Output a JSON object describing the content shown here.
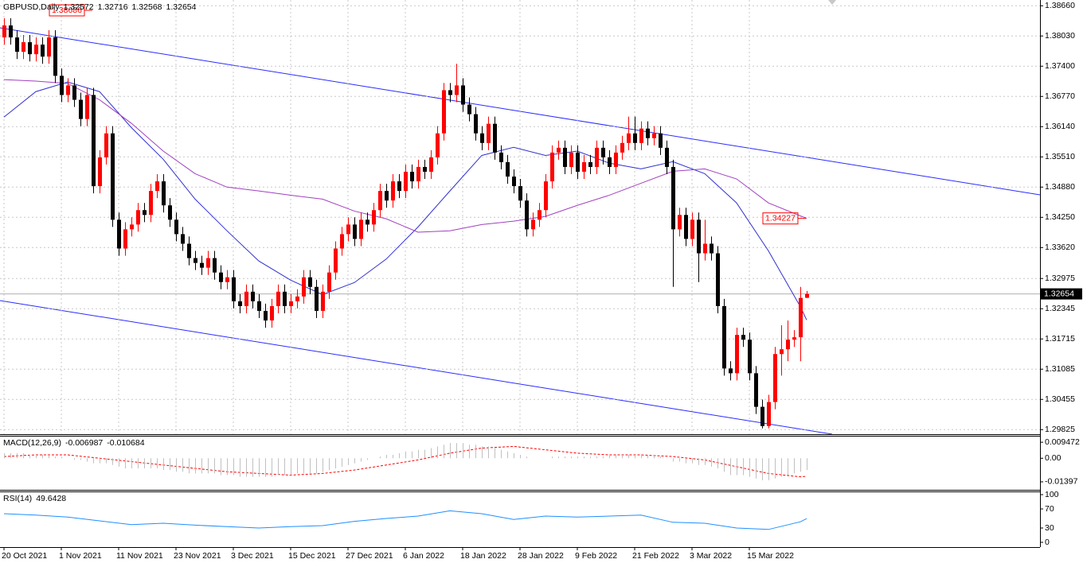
{
  "chart_data": [
    {
      "type": "candlestick",
      "title": "GBPUSD,Daily",
      "categories": [
        "20 Oct 2021",
        null,
        null,
        null,
        null,
        null,
        null,
        null,
        null,
        "1 Nov 2021",
        null,
        null,
        null,
        null,
        null,
        null,
        null,
        null,
        "11 Nov 2021",
        null,
        null,
        null,
        null,
        null,
        null,
        null,
        null,
        "23 Nov 2021",
        null,
        null,
        null,
        null,
        null,
        null,
        null,
        null,
        "3 Dec 2021",
        null,
        null,
        null,
        null,
        null,
        null,
        null,
        null,
        "15 Dec 2021",
        null,
        null,
        null,
        null,
        null,
        null,
        null,
        null,
        "27 Dec 2021",
        null,
        null,
        null,
        null,
        null,
        null,
        null,
        null,
        "6 Jan 2022",
        null,
        null,
        null,
        null,
        null,
        null,
        null,
        null,
        "18 Jan 2022",
        null,
        null,
        null,
        null,
        null,
        null,
        null,
        null,
        "28 Jan 2022",
        null,
        null,
        null,
        null,
        null,
        null,
        null,
        null,
        "9 Feb 2022",
        null,
        null,
        null,
        null,
        null,
        null,
        null,
        null,
        "21 Feb 2022",
        null,
        null,
        null,
        null,
        null,
        null,
        null,
        null,
        "3 Mar 2022",
        null,
        null,
        null,
        null,
        null,
        null,
        null,
        null,
        "15 Mar 2022",
        null,
        null,
        null,
        null,
        null,
        null,
        null,
        null,
        null
      ],
      "open": [
        1.38,
        1.3825,
        1.38,
        1.377,
        1.379,
        1.3765,
        1.3785,
        1.376,
        1.38,
        1.372,
        1.368,
        1.37,
        1.367,
        1.363,
        1.368,
        1.349,
        1.355,
        1.36,
        1.342,
        1.336,
        1.34,
        1.341,
        1.344,
        1.343,
        1.348,
        1.35,
        1.345,
        1.342,
        1.339,
        1.337,
        1.334,
        1.333,
        1.332,
        1.334,
        1.331,
        1.329,
        1.33,
        1.325,
        1.324,
        1.327,
        1.325,
        1.323,
        1.321,
        1.324,
        1.327,
        1.324,
        1.325,
        1.326,
        1.33,
        1.328,
        1.323,
        1.327,
        1.331,
        1.336,
        1.339,
        1.341,
        1.338,
        1.342,
        1.341,
        1.344,
        1.348,
        1.346,
        1.35,
        1.348,
        1.352,
        1.35,
        1.353,
        1.352,
        1.355,
        1.36,
        1.369,
        1.368,
        1.37,
        1.366,
        1.364,
        1.36,
        1.358,
        1.362,
        1.356,
        1.354,
        1.351,
        1.349,
        1.346,
        1.34,
        1.342,
        1.344,
        1.35,
        1.356,
        1.357,
        1.353,
        1.356,
        1.352,
        1.354,
        1.353,
        1.357,
        1.355,
        1.353,
        1.356,
        1.358,
        1.36,
        1.358,
        1.361,
        1.359,
        1.36,
        1.357,
        1.353,
        1.34,
        1.343,
        1.338,
        1.342,
        1.335,
        1.337,
        1.335,
        1.324,
        1.311,
        1.31,
        1.318,
        1.317,
        1.31,
        1.303,
        1.299,
        1.304,
        1.314,
        1.315,
        1.317,
        1.3175,
        1.32572
      ],
      "high": [
        1.384,
        1.384,
        1.3815,
        1.3805,
        1.3805,
        1.38,
        1.38,
        1.3815,
        1.3815,
        1.3735,
        1.3715,
        1.3715,
        1.3685,
        1.3695,
        1.3695,
        1.3565,
        1.3615,
        1.3615,
        1.3435,
        1.3415,
        1.3425,
        1.3455,
        1.3455,
        1.3495,
        1.3515,
        1.3515,
        1.3465,
        1.3435,
        1.3405,
        1.3385,
        1.3355,
        1.3345,
        1.3355,
        1.3355,
        1.3325,
        1.3315,
        1.3315,
        1.3265,
        1.3285,
        1.3285,
        1.3265,
        1.3245,
        1.3255,
        1.3285,
        1.3285,
        1.3265,
        1.3275,
        1.3315,
        1.3315,
        1.3295,
        1.3285,
        1.3325,
        1.3375,
        1.3405,
        1.3425,
        1.3425,
        1.3435,
        1.3435,
        1.3455,
        1.3495,
        1.3495,
        1.3515,
        1.3515,
        1.3535,
        1.3535,
        1.3545,
        1.3545,
        1.3565,
        1.3615,
        1.3705,
        1.3705,
        1.3745,
        1.3715,
        1.3675,
        1.3655,
        1.3615,
        1.3635,
        1.3635,
        1.3575,
        1.3555,
        1.3525,
        1.3505,
        1.3475,
        1.3435,
        1.3455,
        1.3515,
        1.3575,
        1.3585,
        1.3585,
        1.3575,
        1.3575,
        1.3555,
        1.3555,
        1.3585,
        1.3585,
        1.3565,
        1.3575,
        1.3595,
        1.3635,
        1.3635,
        1.3625,
        1.3625,
        1.3615,
        1.3615,
        1.3585,
        1.3545,
        1.3445,
        1.3445,
        1.3435,
        1.3435,
        1.342,
        1.3385,
        1.3365,
        1.3255,
        1.3125,
        1.3195,
        1.3195,
        1.3185,
        1.3115,
        1.3045,
        1.3055,
        1.3155,
        1.32,
        1.321,
        1.319,
        1.328,
        1.32716
      ],
      "low": [
        1.3785,
        1.3785,
        1.3755,
        1.3755,
        1.375,
        1.375,
        1.3745,
        1.3745,
        1.3705,
        1.3665,
        1.3665,
        1.3655,
        1.3615,
        1.3615,
        1.3475,
        1.3475,
        1.3535,
        1.3405,
        1.3345,
        1.3345,
        1.3385,
        1.3395,
        1.3415,
        1.3415,
        1.3465,
        1.3435,
        1.3405,
        1.3375,
        1.3355,
        1.3325,
        1.3315,
        1.3305,
        1.3305,
        1.3295,
        1.3275,
        1.3275,
        1.3235,
        1.3225,
        1.3225,
        1.3235,
        1.3215,
        1.3195,
        1.3195,
        1.3225,
        1.3225,
        1.3225,
        1.3235,
        1.3245,
        1.3265,
        1.3215,
        1.3215,
        1.3255,
        1.3295,
        1.3345,
        1.3375,
        1.3365,
        1.3365,
        1.3395,
        1.3395,
        1.3425,
        1.3445,
        1.3445,
        1.3465,
        1.3465,
        1.3485,
        1.3485,
        1.3505,
        1.3505,
        1.3535,
        1.3585,
        1.3665,
        1.3665,
        1.3645,
        1.3625,
        1.3585,
        1.3565,
        1.3565,
        1.3545,
        1.3525,
        1.3495,
        1.3475,
        1.3445,
        1.3385,
        1.3385,
        1.3405,
        1.3425,
        1.3485,
        1.3545,
        1.3515,
        1.3515,
        1.3505,
        1.3505,
        1.3515,
        1.3515,
        1.3535,
        1.3515,
        1.3515,
        1.3545,
        1.3565,
        1.3565,
        1.3565,
        1.3575,
        1.3575,
        1.3555,
        1.3515,
        1.328,
        1.3385,
        1.3365,
        1.3365,
        1.329,
        1.3335,
        1.3335,
        1.3225,
        1.3095,
        1.3085,
        1.3085,
        1.3155,
        1.3085,
        1.3015,
        1.2985,
        1.2985,
        1.3025,
        1.3095,
        1.3125,
        1.3155,
        1.3125,
        1.32568
      ],
      "close": [
        1.3825,
        1.38,
        1.377,
        1.379,
        1.3765,
        1.3785,
        1.376,
        1.38,
        1.372,
        1.368,
        1.37,
        1.367,
        1.363,
        1.368,
        1.349,
        1.355,
        1.36,
        1.342,
        1.336,
        1.34,
        1.341,
        1.344,
        1.343,
        1.348,
        1.35,
        1.345,
        1.342,
        1.339,
        1.337,
        1.334,
        1.333,
        1.332,
        1.334,
        1.331,
        1.329,
        1.33,
        1.325,
        1.324,
        1.327,
        1.325,
        1.323,
        1.321,
        1.324,
        1.327,
        1.324,
        1.325,
        1.326,
        1.33,
        1.328,
        1.323,
        1.327,
        1.331,
        1.336,
        1.339,
        1.341,
        1.338,
        1.342,
        1.341,
        1.344,
        1.348,
        1.346,
        1.35,
        1.348,
        1.352,
        1.35,
        1.353,
        1.352,
        1.355,
        1.36,
        1.369,
        1.368,
        1.37,
        1.366,
        1.364,
        1.36,
        1.358,
        1.362,
        1.356,
        1.354,
        1.351,
        1.349,
        1.346,
        1.34,
        1.342,
        1.344,
        1.35,
        1.356,
        1.357,
        1.353,
        1.356,
        1.352,
        1.354,
        1.353,
        1.357,
        1.355,
        1.353,
        1.356,
        1.358,
        1.36,
        1.358,
        1.361,
        1.359,
        1.36,
        1.357,
        1.353,
        1.34,
        1.343,
        1.338,
        1.342,
        1.335,
        1.337,
        1.335,
        1.324,
        1.311,
        1.31,
        1.318,
        1.317,
        1.31,
        1.303,
        1.299,
        1.304,
        1.314,
        1.315,
        1.317,
        1.3175,
        1.3257,
        1.32654
      ],
      "up_color": "#ff0000",
      "down_color": "#000000",
      "series": [
        {
          "color": "#3030d0",
          "x": [
            0,
            5,
            10,
            15,
            20,
            25,
            30,
            35,
            40,
            45,
            50,
            55,
            60,
            65,
            70,
            75,
            80,
            85,
            90,
            95,
            100,
            105,
            110,
            115,
            120,
            125,
            126
          ],
          "values": [
            1.3634,
            1.3687,
            1.3707,
            1.3687,
            1.3612,
            1.3546,
            1.3463,
            1.3397,
            1.3334,
            1.3294,
            1.3264,
            1.3289,
            1.3338,
            1.3405,
            1.348,
            1.3554,
            1.3571,
            1.3554,
            1.3563,
            1.3538,
            1.3526,
            1.3541,
            1.3516,
            1.3455,
            1.3355,
            1.3239,
            1.3211
          ]
        },
        {
          "color": "#a040c0",
          "x": [
            0,
            5,
            10,
            15,
            20,
            25,
            30,
            35,
            40,
            45,
            50,
            55,
            60,
            65,
            70,
            75,
            80,
            85,
            90,
            95,
            100,
            105,
            110,
            115,
            120,
            125,
            126
          ],
          "values": [
            1.3712,
            1.3709,
            1.3704,
            1.367,
            1.3621,
            1.3563,
            1.3516,
            1.3488,
            1.348,
            1.3471,
            1.3463,
            1.3438,
            1.3422,
            1.3394,
            1.3397,
            1.341,
            1.3417,
            1.3427,
            1.345,
            1.3471,
            1.3496,
            1.3521,
            1.3526,
            1.3505,
            1.3455,
            1.3428,
            1.3423
          ]
        }
      ],
      "price_labels": [
        1.38686,
        1.34227
      ],
      "price_label_color": "#ff0000",
      "ylim": [
        1.2973,
        1.3878
      ],
      "yticks": [
        {
          "value": 1.3866,
          "label": "1.38660"
        },
        {
          "value": 1.3803,
          "label": "1.38030"
        },
        {
          "value": 1.374,
          "label": "1.37400"
        },
        {
          "value": 1.3677,
          "label": "1.36770"
        },
        {
          "value": 1.3614,
          "label": "1.36140"
        },
        {
          "value": 1.3551,
          "label": "1.35510"
        },
        {
          "value": 1.3488,
          "label": "1.34880"
        },
        {
          "value": 1.3425,
          "label": "1.34250"
        },
        {
          "value": 1.3362,
          "label": "1.33620"
        },
        1.32975,
        1.32345,
        1.31715,
        1.31085,
        1.30455,
        1.29825
      ],
      "grid": true
    },
    {
      "type": "macd",
      "title": "MACD(12,26,9)",
      "color": "#c0c0c0",
      "values": [
        0.003,
        0.003,
        0.003,
        0.003,
        0.002,
        0.002,
        0.002,
        0.002,
        0.001,
        0.001,
        0,
        -0.001,
        -0.001,
        -0.002,
        -0.003,
        -0.003,
        -0.003,
        -0.004,
        -0.005,
        -0.006,
        -0.006,
        -0.006,
        -0.006,
        -0.006,
        -0.006,
        -0.007,
        -0.007,
        -0.008,
        -0.008,
        -0.009,
        -0.009,
        -0.009,
        -0.009,
        -0.009,
        -0.01,
        -0.01,
        -0.01,
        -0.011,
        -0.011,
        -0.011,
        -0.011,
        -0.011,
        -0.011,
        -0.01,
        -0.01,
        -0.01,
        -0.009,
        -0.009,
        -0.009,
        -0.009,
        -0.008,
        -0.007,
        -0.006,
        -0.005,
        -0.004,
        -0.003,
        -0.002,
        -0.001,
        0,
        0.001,
        0.002,
        0.002,
        0.003,
        0.004,
        0.004,
        0.005,
        0.005,
        0.006,
        0.007,
        0.008,
        0.009,
        0.009,
        0.009,
        0.008,
        0.008,
        0.007,
        0.007,
        0.006,
        0.005,
        0.004,
        0.003,
        0.002,
        0.001,
        0,
        0,
        0,
        0.001,
        0.001,
        0.001,
        0.001,
        0.001,
        0.001,
        0.001,
        0.001,
        0.001,
        0.002,
        0.002,
        0.002,
        0.002,
        0.002,
        0.002,
        0.002,
        0.002,
        0.001,
        0,
        -0.002,
        -0.002,
        -0.003,
        -0.003,
        -0.004,
        -0.004,
        -0.005,
        -0.006,
        -0.008,
        -0.01,
        -0.01,
        -0.01,
        -0.011,
        -0.012,
        -0.013,
        -0.013,
        -0.012,
        -0.011,
        -0.01,
        -0.009,
        -0.008,
        -0.006987
      ],
      "series": [
        {
          "color": "#ff0000",
          "x": [
            0,
            5,
            10,
            15,
            20,
            25,
            30,
            35,
            40,
            45,
            50,
            55,
            60,
            65,
            70,
            75,
            80,
            85,
            90,
            95,
            100,
            105,
            110,
            115,
            120,
            125,
            126
          ],
          "values": [
            0.001,
            0.002,
            0.002,
            0,
            -0.002,
            -0.004,
            -0.006,
            -0.008,
            -0.009,
            -0.01,
            -0.009,
            -0.007,
            -0.004,
            -0.001,
            0.003,
            0.006,
            0.007,
            0.005,
            0.003,
            0.002,
            0.002,
            0.001,
            -0.001,
            -0.005,
            -0.009,
            -0.011,
            -0.010684
          ]
        }
      ],
      "ylim": [
        -0.0187,
        0.0133
      ],
      "yticks": [
        0.009472,
        {
          "value": 0,
          "label": "0.00"
        },
        -0.01397
      ]
    },
    {
      "type": "line",
      "title": "RSI(14)",
      "color": "#1e90ff",
      "x": [
        0,
        5,
        10,
        15,
        20,
        25,
        30,
        35,
        40,
        45,
        50,
        55,
        60,
        65,
        70,
        75,
        80,
        85,
        90,
        95,
        100,
        105,
        110,
        115,
        120,
        125,
        126
      ],
      "values": [
        60,
        57,
        53,
        45,
        37,
        40,
        36,
        33,
        30,
        33,
        35,
        44,
        50,
        55,
        66,
        60,
        48,
        55,
        53,
        55,
        57,
        42,
        40,
        30,
        27,
        43,
        49.6428
      ],
      "ylim": [
        -10,
        106.7
      ],
      "yticks": [
        100,
        70,
        30,
        0
      ]
    }
  ]
}
